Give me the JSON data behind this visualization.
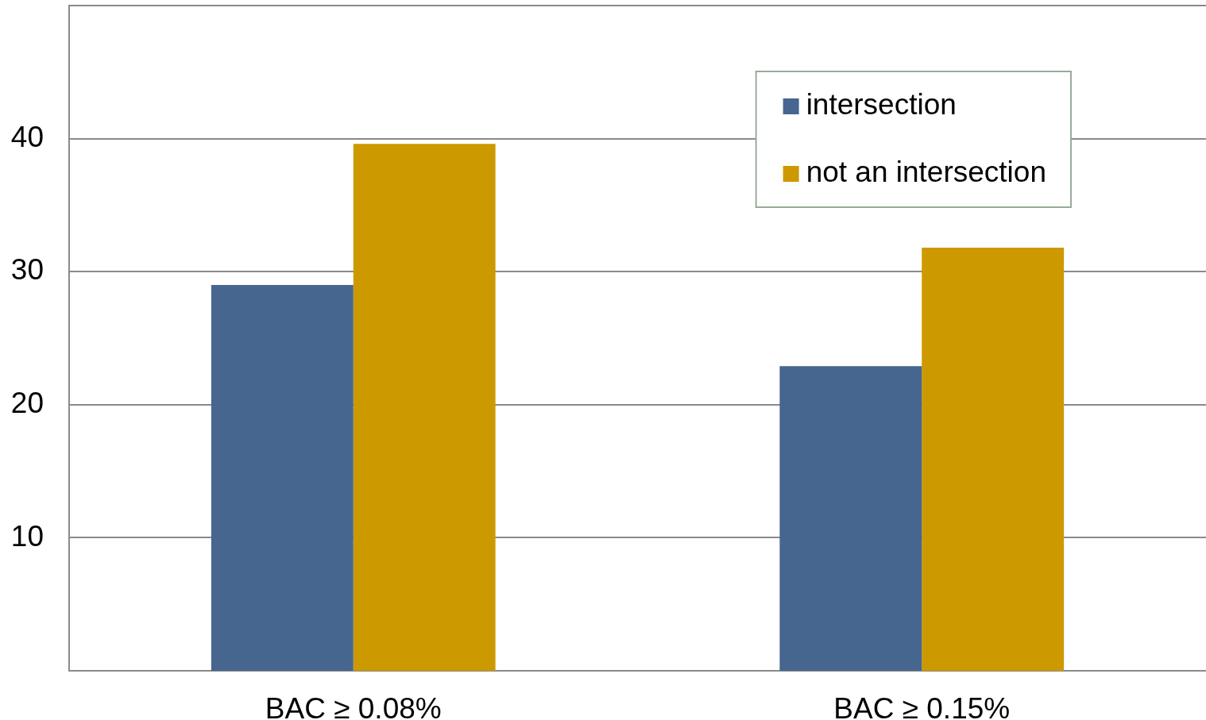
{
  "chart_data": {
    "type": "bar",
    "categories": [
      "BAC ≥ 0.08%",
      "BAC ≥ 0.15%"
    ],
    "series": [
      {
        "name": "intersection",
        "color": "#466690",
        "values": [
          29.0,
          22.9
        ]
      },
      {
        "name": "not an intersection",
        "color": "#cc9900",
        "values": [
          39.6,
          31.8
        ]
      }
    ],
    "ylim": [
      0,
      50
    ],
    "yticks": [
      10,
      20,
      30,
      40
    ],
    "grid": "y",
    "legend": "top right"
  }
}
